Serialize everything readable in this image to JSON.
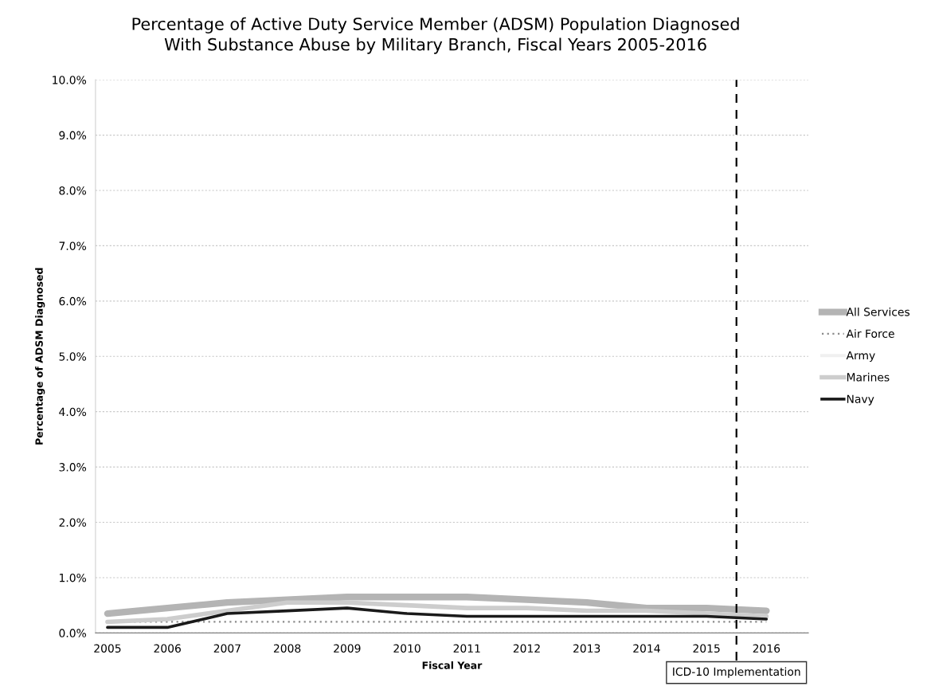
{
  "chart_data": {
    "type": "line",
    "title": "Percentage of Active Duty Service Member (ADSM) Population Diagnosed\nWith Substance Abuse by Military Branch, Fiscal Years 2005-2016",
    "xlabel": "Fiscal Year",
    "ylabel": "Percentage of ADSM Diagnosed",
    "x": [
      2005,
      2006,
      2007,
      2008,
      2009,
      2010,
      2011,
      2012,
      2013,
      2014,
      2015,
      2016
    ],
    "series": [
      {
        "name": "All Services",
        "color": "#b4b4b4",
        "line_style": "solid",
        "values": [
          0.35,
          0.45,
          0.55,
          0.6,
          0.65,
          0.65,
          0.65,
          0.6,
          0.55,
          0.45,
          0.45,
          0.4
        ]
      },
      {
        "name": "Air Force",
        "color": "#8c8c8c",
        "line_style": "dotted",
        "values": [
          0.2,
          0.2,
          0.2,
          0.2,
          0.2,
          0.2,
          0.2,
          0.2,
          0.2,
          0.2,
          0.2,
          0.2
        ]
      },
      {
        "name": "Army",
        "color": "#f0f0f0",
        "line_style": "solid",
        "values": [
          null,
          null,
          null,
          null,
          null,
          null,
          null,
          null,
          null,
          null,
          null,
          null
        ]
      },
      {
        "name": "Marines",
        "color": "#cdcdcd",
        "line_style": "solid",
        "values": [
          0.2,
          0.25,
          0.4,
          0.55,
          0.55,
          0.5,
          0.45,
          0.45,
          0.4,
          0.4,
          0.35,
          0.3
        ]
      },
      {
        "name": "Navy",
        "color": "#1a1a1a",
        "line_style": "solid",
        "values": [
          0.1,
          0.1,
          0.35,
          0.4,
          0.45,
          0.35,
          0.3,
          0.3,
          0.3,
          0.3,
          0.3,
          0.25
        ]
      }
    ],
    "xlim": [
      2004.8,
      2016.7
    ],
    "xticks": [
      2005,
      2006,
      2007,
      2008,
      2009,
      2010,
      2011,
      2012,
      2013,
      2014,
      2015,
      2016
    ],
    "ylim": [
      0,
      10
    ],
    "yticks": [
      {
        "value": 0,
        "label": "0.0%"
      },
      {
        "value": 1,
        "label": "1.0%"
      },
      {
        "value": 2,
        "label": "2.0%"
      },
      {
        "value": 3,
        "label": "3.0%"
      },
      {
        "value": 4,
        "label": "4.0%"
      },
      {
        "value": 5,
        "label": "5.0%"
      },
      {
        "value": 6,
        "label": "6.0%"
      },
      {
        "value": 7,
        "label": "7.0%"
      },
      {
        "value": 8,
        "label": "8.0%"
      },
      {
        "value": 9,
        "label": "9.0%"
      },
      {
        "value": 10,
        "label": "10.0%"
      }
    ],
    "ref_lines": [
      {
        "axis": "x",
        "value": 2015.5,
        "label": "ICD-10 Implementation",
        "color": "#000000",
        "line_style": "dashed"
      }
    ],
    "grid": "y",
    "legend": "right",
    "marker": "none"
  }
}
